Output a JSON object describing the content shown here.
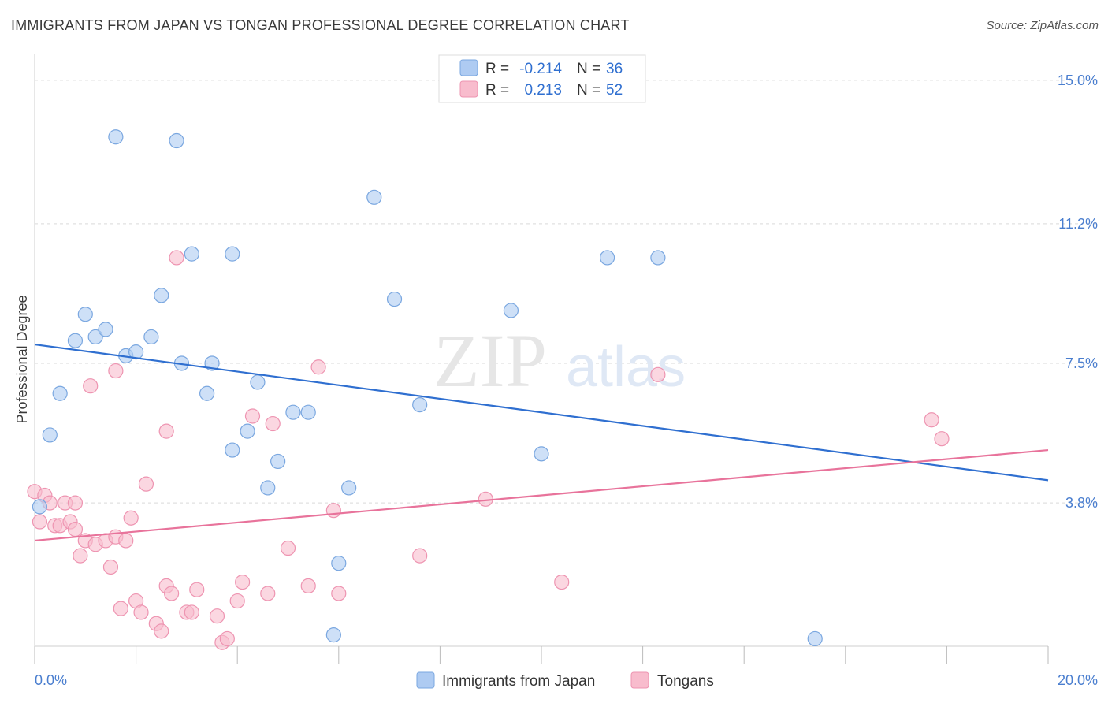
{
  "title": "IMMIGRANTS FROM JAPAN VS TONGAN PROFESSIONAL DEGREE CORRELATION CHART",
  "source": "Source: ZipAtlas.com",
  "watermark": {
    "zip": "ZIP",
    "atlas": "atlas"
  },
  "colors": {
    "japan_fill": "#aecbf2",
    "japan_stroke": "#7aa7e0",
    "japan_line": "#2f6fd0",
    "tongan_fill": "#f8bccd",
    "tongan_stroke": "#ee94b1",
    "tongan_line": "#e8739b",
    "tick": "#4a7ecf",
    "grid": "#d9d9d9"
  },
  "legend_top": {
    "rows": [
      {
        "r_label": "R =",
        "r_value": "-0.214",
        "n_label": "N =",
        "n_value": "36"
      },
      {
        "r_label": "R =",
        "r_value": "0.213",
        "n_label": "N =",
        "n_value": "52"
      }
    ]
  },
  "chart_data": {
    "type": "scatter",
    "title": "IMMIGRANTS FROM JAPAN VS TONGAN PROFESSIONAL DEGREE CORRELATION CHART",
    "xlabel": "",
    "ylabel": "Professional Degree",
    "xlim": [
      0,
      20
    ],
    "ylim": [
      0,
      15.5
    ],
    "x_tick_labels": [
      "0.0%",
      "20.0%"
    ],
    "y_ticks": [
      3.8,
      7.5,
      11.2,
      15.0
    ],
    "y_tick_labels": [
      "3.8%",
      "7.5%",
      "11.2%",
      "15.0%"
    ],
    "grid": true,
    "legend_position": "bottom-center",
    "series": [
      {
        "name": "Immigrants from Japan",
        "color": "#aecbf2",
        "trend": {
          "x": [
            0,
            20
          ],
          "y": [
            8.0,
            4.4
          ]
        },
        "points": [
          [
            0.1,
            3.7
          ],
          [
            0.3,
            5.6
          ],
          [
            0.5,
            6.7
          ],
          [
            0.8,
            8.1
          ],
          [
            1.0,
            8.8
          ],
          [
            1.2,
            8.2
          ],
          [
            1.4,
            8.4
          ],
          [
            1.6,
            13.5
          ],
          [
            1.8,
            7.7
          ],
          [
            2.0,
            7.8
          ],
          [
            2.3,
            8.2
          ],
          [
            2.5,
            9.3
          ],
          [
            2.8,
            13.4
          ],
          [
            2.9,
            7.5
          ],
          [
            3.1,
            10.4
          ],
          [
            3.4,
            6.7
          ],
          [
            3.5,
            7.5
          ],
          [
            3.9,
            10.4
          ],
          [
            3.9,
            5.2
          ],
          [
            4.2,
            5.7
          ],
          [
            4.4,
            7.0
          ],
          [
            4.6,
            4.2
          ],
          [
            4.8,
            4.9
          ],
          [
            5.1,
            6.2
          ],
          [
            5.4,
            6.2
          ],
          [
            5.9,
            0.3
          ],
          [
            6.0,
            2.2
          ],
          [
            6.2,
            4.2
          ],
          [
            6.7,
            11.9
          ],
          [
            7.1,
            9.2
          ],
          [
            7.6,
            6.4
          ],
          [
            9.4,
            8.9
          ],
          [
            10.0,
            5.1
          ],
          [
            11.3,
            10.3
          ],
          [
            12.3,
            10.3
          ],
          [
            15.4,
            0.2
          ]
        ]
      },
      {
        "name": "Tongans",
        "color": "#f8bccd",
        "trend": {
          "x": [
            0,
            20
          ],
          "y": [
            2.8,
            5.2
          ]
        },
        "points": [
          [
            0.0,
            4.1
          ],
          [
            0.1,
            3.3
          ],
          [
            0.2,
            4.0
          ],
          [
            0.3,
            3.8
          ],
          [
            0.4,
            3.2
          ],
          [
            0.5,
            3.2
          ],
          [
            0.6,
            3.8
          ],
          [
            0.7,
            3.3
          ],
          [
            0.8,
            3.1
          ],
          [
            0.8,
            3.8
          ],
          [
            0.9,
            2.4
          ],
          [
            1.0,
            2.8
          ],
          [
            1.1,
            6.9
          ],
          [
            1.2,
            2.7
          ],
          [
            1.4,
            2.8
          ],
          [
            1.5,
            2.1
          ],
          [
            1.6,
            2.9
          ],
          [
            1.6,
            7.3
          ],
          [
            1.7,
            1.0
          ],
          [
            1.8,
            2.8
          ],
          [
            1.9,
            3.4
          ],
          [
            2.0,
            1.2
          ],
          [
            2.1,
            0.9
          ],
          [
            2.2,
            4.3
          ],
          [
            2.4,
            0.6
          ],
          [
            2.5,
            0.4
          ],
          [
            2.6,
            1.6
          ],
          [
            2.6,
            5.7
          ],
          [
            2.7,
            1.4
          ],
          [
            2.8,
            10.3
          ],
          [
            3.0,
            0.9
          ],
          [
            3.1,
            0.9
          ],
          [
            3.2,
            1.5
          ],
          [
            3.6,
            0.8
          ],
          [
            3.7,
            0.1
          ],
          [
            3.8,
            0.2
          ],
          [
            4.0,
            1.2
          ],
          [
            4.1,
            1.7
          ],
          [
            4.3,
            6.1
          ],
          [
            4.6,
            1.4
          ],
          [
            4.7,
            5.9
          ],
          [
            5.0,
            2.6
          ],
          [
            5.4,
            1.6
          ],
          [
            5.6,
            7.4
          ],
          [
            5.9,
            3.6
          ],
          [
            6.0,
            1.4
          ],
          [
            7.6,
            2.4
          ],
          [
            8.9,
            3.9
          ],
          [
            10.4,
            1.7
          ],
          [
            12.3,
            7.2
          ],
          [
            17.7,
            6.0
          ],
          [
            17.9,
            5.5
          ]
        ]
      }
    ]
  },
  "legend_bottom": {
    "items": [
      "Immigrants from Japan",
      "Tongans"
    ]
  }
}
